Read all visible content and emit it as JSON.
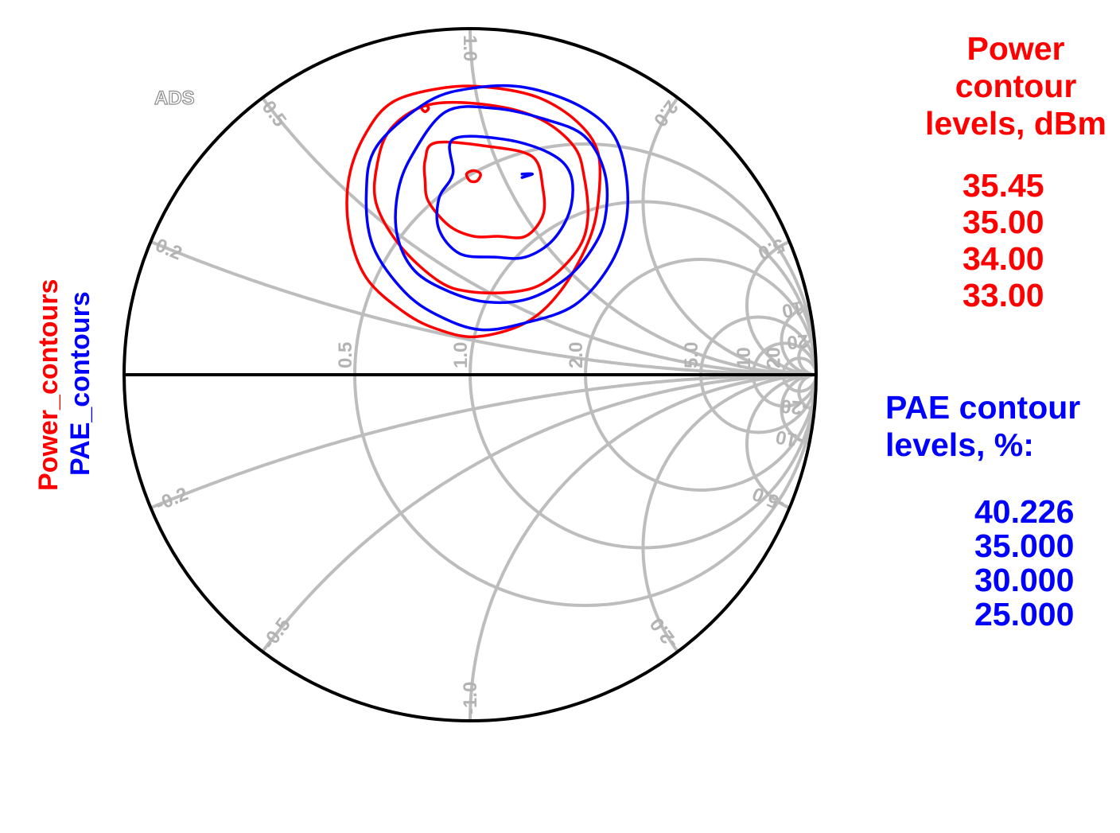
{
  "watermark": "ADS",
  "y_labels": {
    "power": "Power_contours",
    "pae": "PAE_contours"
  },
  "legend": {
    "power": {
      "title": "Power\ncontour\nlevels, dBm",
      "levels": [
        "35.45",
        "35.00",
        "34.00",
        "33.00"
      ]
    },
    "pae": {
      "title": "PAE contour\nlevels, %:",
      "levels": [
        "40.226",
        "35.000",
        "30.000",
        "25.000"
      ]
    }
  },
  "colors": {
    "power": "#ff0000",
    "pae": "#0000ff",
    "grid": "#bdbdbd",
    "border": "#000000"
  },
  "chart_data": {
    "type": "smith-chart-contours",
    "grid": {
      "resistance_labels": [
        "0.5",
        "1.0",
        "2.0",
        "5.0",
        "10",
        "20"
      ],
      "reactance_labels": [
        "0.2",
        "0.5",
        "1.0",
        "2.0",
        "5.0",
        "10",
        "20",
        "-0.2",
        "-0.5",
        "-1.0",
        "-2.0",
        "-5.0",
        "-10",
        "-20"
      ],
      "resistance_values": [
        0.5,
        1.0,
        2.0,
        5.0,
        10,
        20
      ],
      "reactance_values": [
        0.2,
        0.5,
        1.0,
        2.0,
        5.0,
        10,
        20,
        -0.2,
        -0.5,
        -1.0,
        -2.0,
        -5.0,
        -10,
        -20
      ]
    },
    "series": [
      {
        "name": "Power_contours",
        "color": "#ff0000",
        "contours": [
          {
            "level": "35.45",
            "points": [
              [
                0.01,
                0.59
              ],
              [
                0.03,
                0.58
              ],
              [
                0.02,
                0.56
              ],
              [
                0.0,
                0.56
              ],
              [
                -0.01,
                0.58
              ],
              [
                0.01,
                0.59
              ]
            ]
          },
          {
            "level": "35.00",
            "points": [
              [
                -0.1,
                0.67
              ],
              [
                0.05,
                0.66
              ],
              [
                0.18,
                0.63
              ],
              [
                0.21,
                0.54
              ],
              [
                0.21,
                0.46
              ],
              [
                0.16,
                0.4
              ],
              [
                0.08,
                0.4
              ],
              [
                0.01,
                0.4
              ],
              [
                -0.06,
                0.43
              ],
              [
                -0.12,
                0.5
              ],
              [
                -0.13,
                0.56
              ],
              [
                -0.13,
                0.62
              ],
              [
                -0.1,
                0.67
              ]
            ]
          },
          {
            "level": "34.00",
            "points": [
              [
                -0.12,
                0.78
              ],
              [
                0.05,
                0.78
              ],
              [
                0.2,
                0.74
              ],
              [
                0.3,
                0.66
              ],
              [
                0.33,
                0.57
              ],
              [
                0.34,
                0.45
              ],
              [
                0.31,
                0.36
              ],
              [
                0.22,
                0.27
              ],
              [
                0.13,
                0.24
              ],
              [
                0.0,
                0.24
              ],
              [
                -0.09,
                0.27
              ],
              [
                -0.2,
                0.37
              ],
              [
                -0.27,
                0.49
              ],
              [
                -0.27,
                0.6
              ],
              [
                -0.23,
                0.71
              ],
              [
                -0.12,
                0.78
              ]
            ]
          },
          {
            "level": "33.00",
            "points": [
              [
                -0.07,
                0.83
              ],
              [
                0.06,
                0.83
              ],
              [
                0.2,
                0.8
              ],
              [
                0.31,
                0.73
              ],
              [
                0.37,
                0.64
              ],
              [
                0.37,
                0.5
              ],
              [
                0.34,
                0.38
              ],
              [
                0.26,
                0.24
              ],
              [
                0.16,
                0.15
              ],
              [
                0.02,
                0.11
              ],
              [
                -0.09,
                0.13
              ],
              [
                -0.19,
                0.18
              ],
              [
                -0.3,
                0.28
              ],
              [
                -0.35,
                0.42
              ],
              [
                -0.35,
                0.57
              ],
              [
                -0.3,
                0.7
              ],
              [
                -0.22,
                0.79
              ],
              [
                -0.07,
                0.83
              ]
            ]
          },
          {
            "level": "",
            "points": [
              [
                -0.13,
                0.76
              ],
              [
                -0.12,
                0.77
              ],
              [
                -0.13,
                0.78
              ],
              [
                -0.14,
                0.77
              ],
              [
                -0.13,
                0.76
              ]
            ]
          }
        ]
      },
      {
        "name": "PAE_contours",
        "color": "#0000ff",
        "contours": [
          {
            "level": "40.226",
            "points": [
              [
                0.15,
                0.58
              ],
              [
                0.18,
                0.58
              ],
              [
                0.15,
                0.57
              ]
            ]
          },
          {
            "level": "35.000",
            "points": [
              [
                -0.05,
                0.68
              ],
              [
                0.1,
                0.68
              ],
              [
                0.23,
                0.64
              ],
              [
                0.29,
                0.58
              ],
              [
                0.29,
                0.48
              ],
              [
                0.24,
                0.39
              ],
              [
                0.16,
                0.34
              ],
              [
                0.07,
                0.34
              ],
              [
                -0.03,
                0.35
              ],
              [
                -0.09,
                0.42
              ],
              [
                -0.09,
                0.51
              ],
              [
                -0.05,
                0.58
              ],
              [
                -0.05,
                0.68
              ]
            ]
          },
          {
            "level": "30.000",
            "points": [
              [
                -0.07,
                0.76
              ],
              [
                0.07,
                0.77
              ],
              [
                0.21,
                0.74
              ],
              [
                0.33,
                0.69
              ],
              [
                0.39,
                0.58
              ],
              [
                0.39,
                0.45
              ],
              [
                0.35,
                0.36
              ],
              [
                0.28,
                0.28
              ],
              [
                0.17,
                0.22
              ],
              [
                0.05,
                0.21
              ],
              [
                -0.06,
                0.24
              ],
              [
                -0.16,
                0.3
              ],
              [
                -0.21,
                0.4
              ],
              [
                -0.21,
                0.52
              ],
              [
                -0.17,
                0.63
              ],
              [
                -0.07,
                0.76
              ]
            ]
          },
          {
            "level": "25.000",
            "points": [
              [
                -0.12,
                0.79
              ],
              [
                0.02,
                0.83
              ],
              [
                0.16,
                0.83
              ],
              [
                0.31,
                0.78
              ],
              [
                0.41,
                0.7
              ],
              [
                0.45,
                0.58
              ],
              [
                0.45,
                0.44
              ],
              [
                0.4,
                0.31
              ],
              [
                0.3,
                0.2
              ],
              [
                0.16,
                0.15
              ],
              [
                0.03,
                0.13
              ],
              [
                -0.09,
                0.17
              ],
              [
                -0.19,
                0.24
              ],
              [
                -0.28,
                0.37
              ],
              [
                -0.3,
                0.52
              ],
              [
                -0.27,
                0.66
              ],
              [
                -0.12,
                0.79
              ]
            ]
          }
        ]
      }
    ]
  }
}
